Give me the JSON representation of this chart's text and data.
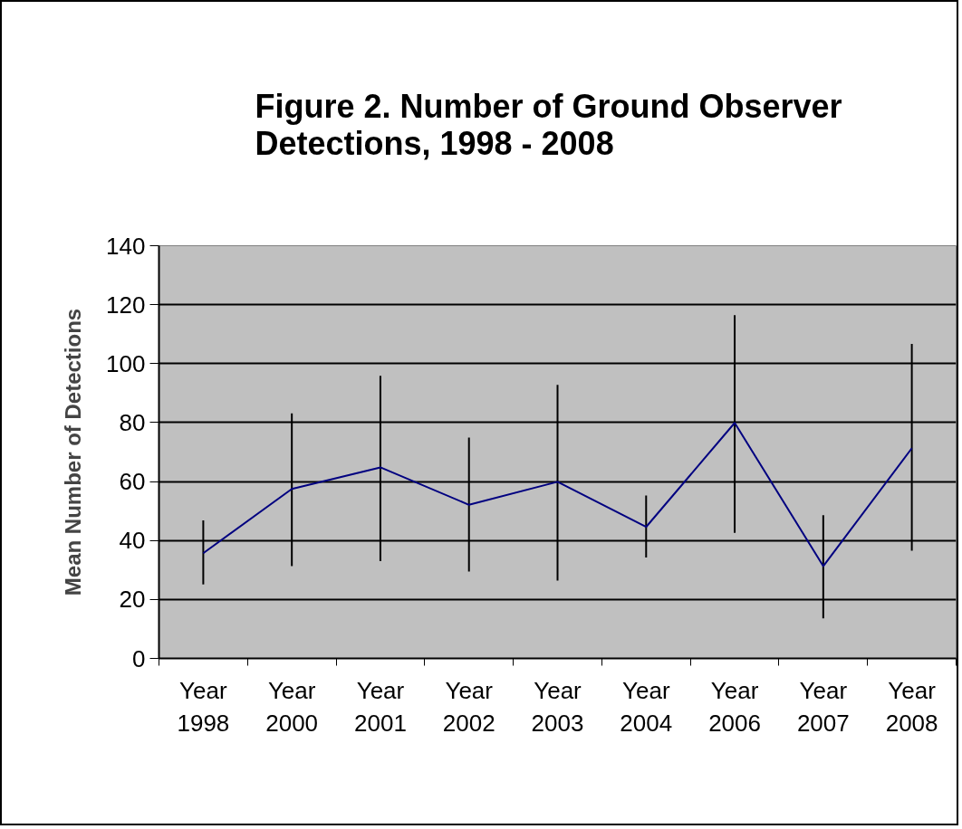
{
  "chart_data": {
    "type": "line",
    "title": "Figure 2.  Number  of Ground Observer\nDetections, 1998 - 2008",
    "ylabel": "Mean Number of Detections",
    "categories": [
      "Year 1998",
      "Year 2000",
      "Year 2001",
      "Year 2002",
      "Year 2003",
      "Year 2004",
      "Year 2006",
      "Year 2007",
      "Year 2008"
    ],
    "series": [
      {
        "color": "#000080",
        "values": [
          35.7,
          57.5,
          64.8,
          52.1,
          59.9,
          44.6,
          79.9,
          31.3,
          71.3
        ],
        "errors": [
          [
            25.1,
            46.8
          ],
          [
            31.3,
            83.1
          ],
          [
            33,
            95.9
          ],
          [
            29.5,
            74.9
          ],
          [
            26.4,
            92.8
          ],
          [
            34.2,
            55.3
          ],
          [
            42.6,
            116.4
          ],
          [
            13.6,
            48.6
          ],
          [
            36.5,
            106.7
          ]
        ]
      }
    ],
    "ylim": [
      0,
      140
    ],
    "yticks": [
      0,
      20,
      40,
      60,
      80,
      100,
      120,
      140
    ],
    "grid": "y",
    "marker": "none",
    "line_style": "solid"
  }
}
